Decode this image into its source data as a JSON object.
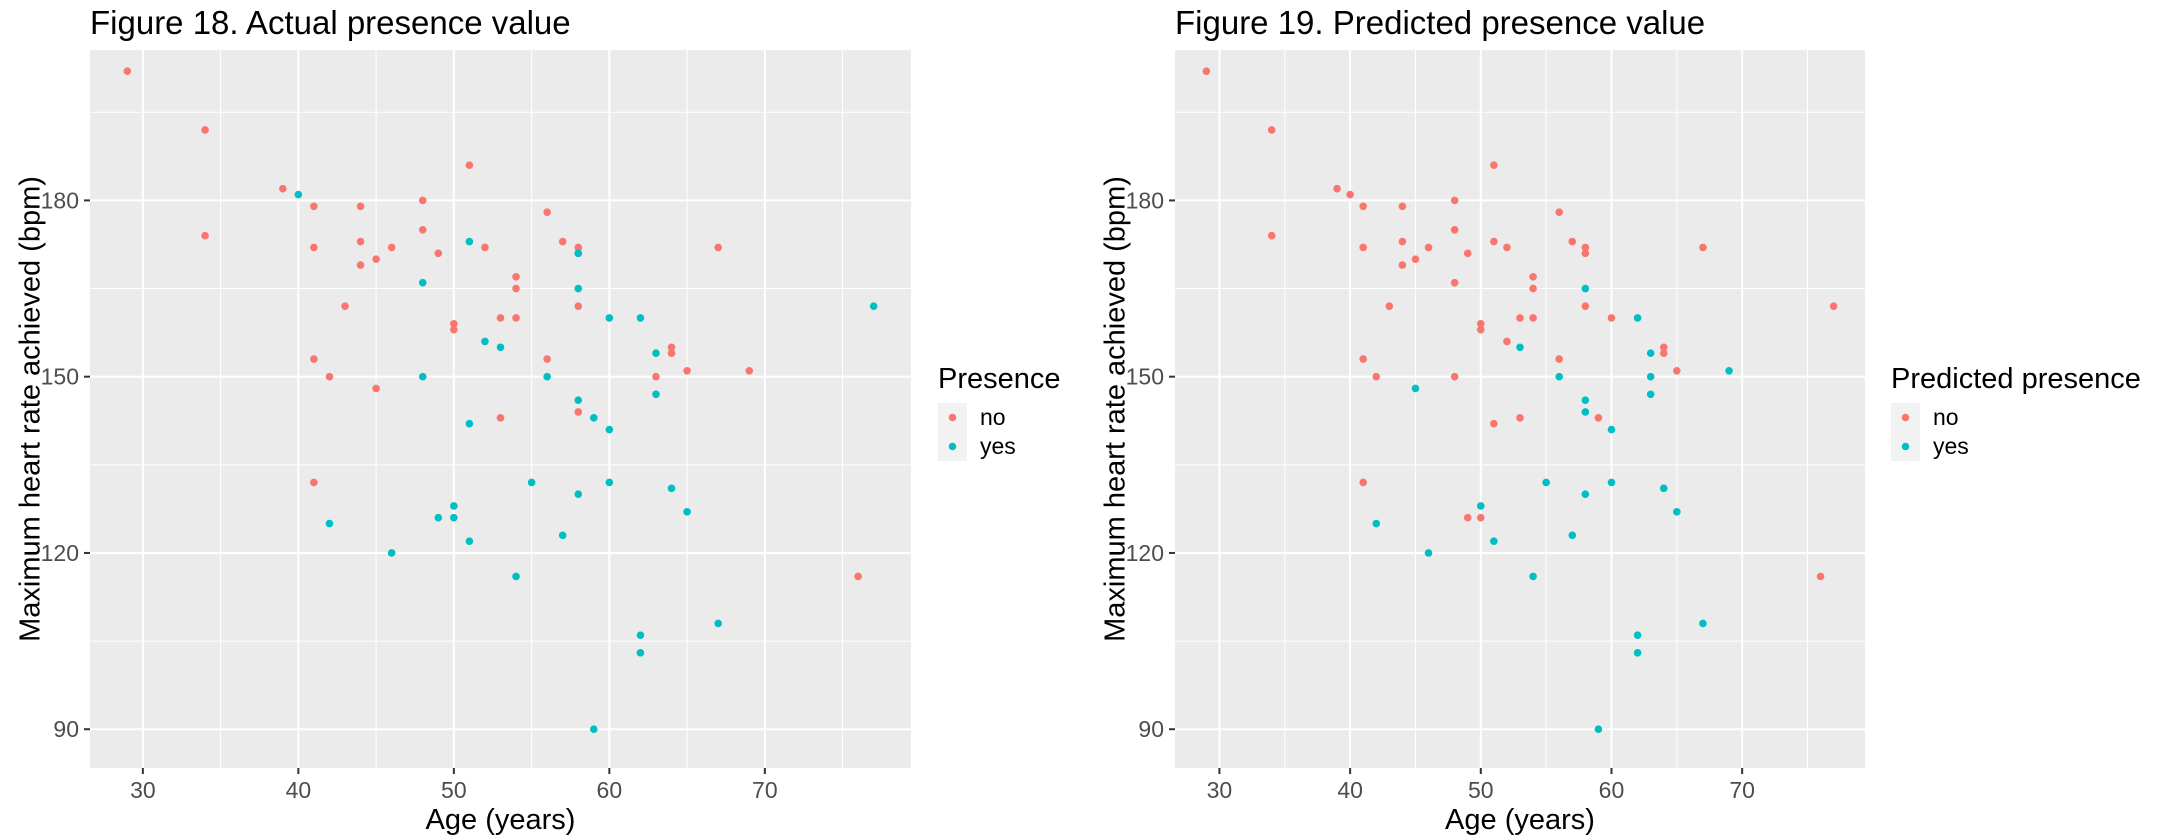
{
  "chart_data": [
    {
      "type": "scatter",
      "title": "Figure 18. Actual presence value",
      "xlabel": "Age (years)",
      "ylabel": "Maximum heart rate achieved (bpm)",
      "xlim": [
        26.6,
        79.4
      ],
      "ylim": [
        83.4,
        205.6
      ],
      "xticks": [
        30,
        40,
        50,
        60,
        70
      ],
      "yticks": [
        90,
        120,
        150,
        180
      ],
      "grid": true,
      "legend": {
        "title": "Presence",
        "placement": "right"
      },
      "series": [
        {
          "name": "no",
          "color": "#F8766D",
          "points": [
            [
              29,
              202
            ],
            [
              34,
              192
            ],
            [
              34,
              174
            ],
            [
              39,
              182
            ],
            [
              41,
              179
            ],
            [
              41,
              172
            ],
            [
              41,
              153
            ],
            [
              41,
              132
            ],
            [
              42,
              150
            ],
            [
              43,
              162
            ],
            [
              44,
              179
            ],
            [
              44,
              173
            ],
            [
              44,
              169
            ],
            [
              45,
              170
            ],
            [
              45,
              148
            ],
            [
              46,
              172
            ],
            [
              48,
              180
            ],
            [
              48,
              175
            ],
            [
              49,
              171
            ],
            [
              50,
              159
            ],
            [
              50,
              158
            ],
            [
              51,
              186
            ],
            [
              52,
              172
            ],
            [
              53,
              160
            ],
            [
              53,
              143
            ],
            [
              54,
              167
            ],
            [
              54,
              165
            ],
            [
              54,
              160
            ],
            [
              56,
              178
            ],
            [
              56,
              153
            ],
            [
              57,
              173
            ],
            [
              58,
              172
            ],
            [
              58,
              171
            ],
            [
              58,
              162
            ],
            [
              58,
              144
            ],
            [
              63,
              150
            ],
            [
              64,
              155
            ],
            [
              64,
              154
            ],
            [
              65,
              151
            ],
            [
              67,
              172
            ],
            [
              69,
              151
            ],
            [
              76,
              116
            ]
          ]
        },
        {
          "name": "yes",
          "color": "#00BFC4",
          "points": [
            [
              40,
              181
            ],
            [
              42,
              125
            ],
            [
              46,
              120
            ],
            [
              48,
              166
            ],
            [
              48,
              150
            ],
            [
              49,
              126
            ],
            [
              50,
              128
            ],
            [
              50,
              126
            ],
            [
              51,
              173
            ],
            [
              51,
              142
            ],
            [
              51,
              122
            ],
            [
              52,
              156
            ],
            [
              53,
              155
            ],
            [
              54,
              116
            ],
            [
              55,
              132
            ],
            [
              56,
              150
            ],
            [
              57,
              123
            ],
            [
              58,
              171
            ],
            [
              58,
              165
            ],
            [
              58,
              146
            ],
            [
              58,
              130
            ],
            [
              59,
              143
            ],
            [
              59,
              90
            ],
            [
              60,
              160
            ],
            [
              60,
              141
            ],
            [
              60,
              132
            ],
            [
              62,
              160
            ],
            [
              62,
              106
            ],
            [
              62,
              103
            ],
            [
              63,
              154
            ],
            [
              63,
              147
            ],
            [
              64,
              131
            ],
            [
              65,
              127
            ],
            [
              67,
              108
            ],
            [
              77,
              162
            ]
          ]
        }
      ]
    },
    {
      "type": "scatter",
      "title": "Figure 19. Predicted presence value",
      "xlabel": "Age (years)",
      "ylabel": "Maximum heart rate achieved (bpm)",
      "xlim": [
        26.6,
        79.4
      ],
      "ylim": [
        83.4,
        205.6
      ],
      "xticks": [
        30,
        40,
        50,
        60,
        70
      ],
      "yticks": [
        90,
        120,
        150,
        180
      ],
      "grid": true,
      "legend": {
        "title": "Predicted presence",
        "placement": "right"
      },
      "series": [
        {
          "name": "no",
          "color": "#F8766D",
          "points": [
            [
              29,
              202
            ],
            [
              34,
              192
            ],
            [
              34,
              174
            ],
            [
              39,
              182
            ],
            [
              40,
              181
            ],
            [
              41,
              179
            ],
            [
              41,
              172
            ],
            [
              41,
              153
            ],
            [
              41,
              132
            ],
            [
              42,
              150
            ],
            [
              43,
              162
            ],
            [
              44,
              179
            ],
            [
              44,
              173
            ],
            [
              44,
              169
            ],
            [
              45,
              170
            ],
            [
              46,
              172
            ],
            [
              48,
              180
            ],
            [
              48,
              175
            ],
            [
              48,
              166
            ],
            [
              48,
              150
            ],
            [
              49,
              171
            ],
            [
              49,
              126
            ],
            [
              50,
              159
            ],
            [
              50,
              158
            ],
            [
              50,
              126
            ],
            [
              51,
              186
            ],
            [
              51,
              173
            ],
            [
              51,
              142
            ],
            [
              52,
              172
            ],
            [
              52,
              156
            ],
            [
              53,
              160
            ],
            [
              53,
              143
            ],
            [
              54,
              167
            ],
            [
              54,
              165
            ],
            [
              54,
              160
            ],
            [
              56,
              178
            ],
            [
              56,
              153
            ],
            [
              57,
              173
            ],
            [
              58,
              172
            ],
            [
              58,
              171
            ],
            [
              58,
              162
            ],
            [
              59,
              143
            ],
            [
              60,
              160
            ],
            [
              64,
              155
            ],
            [
              64,
              154
            ],
            [
              65,
              151
            ],
            [
              67,
              172
            ],
            [
              76,
              116
            ],
            [
              77,
              162
            ]
          ]
        },
        {
          "name": "yes",
          "color": "#00BFC4",
          "points": [
            [
              42,
              125
            ],
            [
              45,
              148
            ],
            [
              46,
              120
            ],
            [
              50,
              128
            ],
            [
              51,
              122
            ],
            [
              53,
              155
            ],
            [
              54,
              116
            ],
            [
              55,
              132
            ],
            [
              56,
              150
            ],
            [
              57,
              123
            ],
            [
              58,
              165
            ],
            [
              58,
              146
            ],
            [
              58,
              144
            ],
            [
              58,
              130
            ],
            [
              59,
              90
            ],
            [
              60,
              141
            ],
            [
              60,
              132
            ],
            [
              62,
              160
            ],
            [
              62,
              106
            ],
            [
              62,
              103
            ],
            [
              63,
              154
            ],
            [
              63,
              150
            ],
            [
              63,
              147
            ],
            [
              64,
              131
            ],
            [
              65,
              127
            ],
            [
              67,
              108
            ],
            [
              69,
              151
            ]
          ]
        }
      ]
    }
  ]
}
